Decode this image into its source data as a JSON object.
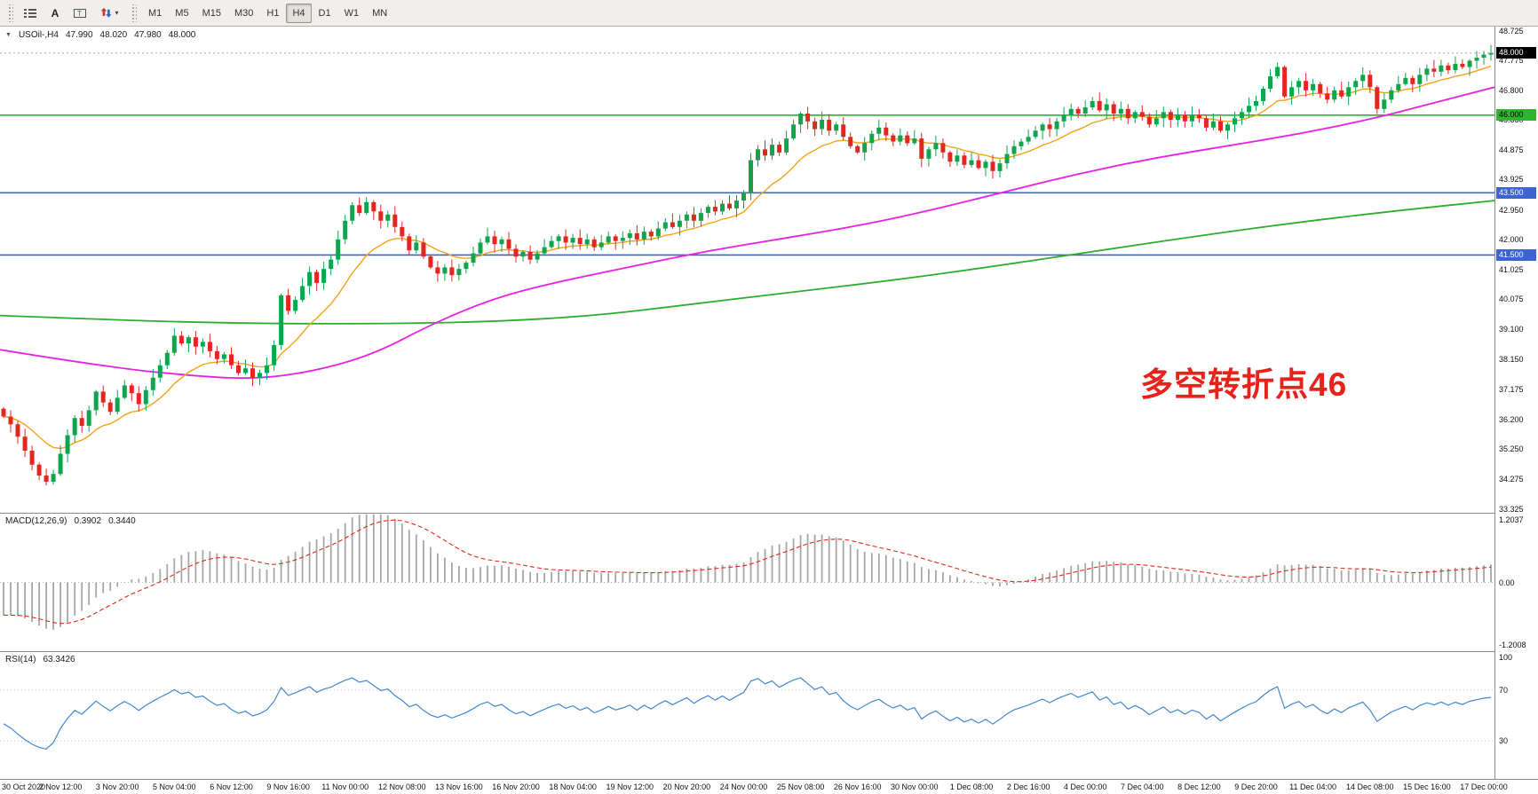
{
  "toolbar": {
    "tools": [
      {
        "name": "chart-list",
        "icon": "list-icon",
        "label": ""
      },
      {
        "name": "text",
        "icon": "text-tool-icon",
        "label": "A"
      },
      {
        "name": "text-label",
        "icon": "label-tool-icon",
        "label": "T"
      },
      {
        "name": "arrows",
        "icon": "arrows-tool-icon",
        "label": "",
        "has_dropdown": true
      }
    ],
    "timeframes": [
      "M1",
      "M5",
      "M15",
      "M30",
      "H1",
      "H4",
      "D1",
      "W1",
      "MN"
    ],
    "active_timeframe": "H4"
  },
  "chart": {
    "title": {
      "symbol_period": "USOil-,H4",
      "open": "47.990",
      "high": "48.020",
      "low": "47.980",
      "close": "48.000"
    },
    "annotation": {
      "text": "多空转折点46",
      "color": "#e8221a"
    }
  },
  "price_axis": {
    "labels": [
      "48.725",
      "47.775",
      "46.800",
      "45.850",
      "44.875",
      "43.925",
      "42.950",
      "42.000",
      "41.025",
      "40.075",
      "39.100",
      "38.150",
      "37.175",
      "36.200",
      "35.250",
      "34.275",
      "33.325"
    ],
    "current": {
      "label": "48.000",
      "price": 48.0,
      "bg": "#000000",
      "fg": "#ffffff"
    },
    "level_labels": [
      {
        "label": "46.000",
        "price": 46.0,
        "bg": "#2eb52e",
        "fg": "#000000"
      },
      {
        "label": "43.500",
        "price": 43.5,
        "bg": "#3c64d0",
        "fg": "#ffffff"
      },
      {
        "label": "41.500",
        "price": 41.5,
        "bg": "#3c64d0",
        "fg": "#ffffff"
      }
    ]
  },
  "macd_panel": {
    "label": "MACD(12,26,9)",
    "value_main": "0.3902",
    "value_signal": "0.3440",
    "axis_labels": [
      "1.2037",
      "0.00",
      "-1.2008"
    ]
  },
  "rsi_panel": {
    "label": "RSI(14)",
    "value": "63.3426",
    "axis_labels": [
      "100",
      "70",
      "30"
    ]
  },
  "chart_data": {
    "type": "candlestick",
    "symbol": "USOil-",
    "timeframe": "H4",
    "title": "USOil-,H4",
    "ohlc_display": {
      "open": 47.99,
      "high": 48.02,
      "low": 47.98,
      "close": 48.0
    },
    "price_range": [
      33.2,
      48.85
    ],
    "current_price": 48.0,
    "first_open": 36.55,
    "closes": [
      36.3,
      36.05,
      35.65,
      35.2,
      34.75,
      34.4,
      34.2,
      34.45,
      35.1,
      35.7,
      36.25,
      36.0,
      36.5,
      37.1,
      36.75,
      36.45,
      36.9,
      37.3,
      37.05,
      36.7,
      37.15,
      37.55,
      37.95,
      38.35,
      38.9,
      38.65,
      38.85,
      38.55,
      38.7,
      38.4,
      38.15,
      38.3,
      37.95,
      37.7,
      37.85,
      37.55,
      37.7,
      37.95,
      38.6,
      40.2,
      39.7,
      40.05,
      40.5,
      40.95,
      40.6,
      41.05,
      41.35,
      42.0,
      42.6,
      43.1,
      42.85,
      43.2,
      42.9,
      42.6,
      42.8,
      42.4,
      42.1,
      41.65,
      41.9,
      41.45,
      41.1,
      40.9,
      41.1,
      40.85,
      41.05,
      41.25,
      41.55,
      41.9,
      42.1,
      41.85,
      42.0,
      41.7,
      41.45,
      41.6,
      41.35,
      41.55,
      41.75,
      41.95,
      42.1,
      41.9,
      42.05,
      41.85,
      42.0,
      41.75,
      41.9,
      42.1,
      41.95,
      42.05,
      42.2,
      42.0,
      42.25,
      42.1,
      42.35,
      42.55,
      42.4,
      42.6,
      42.8,
      42.6,
      42.85,
      43.05,
      42.9,
      43.15,
      43.0,
      43.25,
      43.5,
      44.55,
      44.9,
      44.7,
      45.05,
      44.8,
      45.25,
      45.7,
      46.05,
      45.8,
      45.55,
      45.85,
      45.5,
      45.7,
      45.3,
      45.0,
      44.8,
      45.1,
      45.4,
      45.6,
      45.35,
      45.15,
      45.35,
      45.1,
      45.25,
      44.6,
      44.9,
      45.1,
      44.8,
      44.5,
      44.7,
      44.4,
      44.55,
      44.3,
      44.5,
      44.2,
      44.45,
      44.75,
      45.0,
      45.15,
      45.3,
      45.5,
      45.7,
      45.55,
      45.8,
      46.0,
      46.2,
      46.05,
      46.25,
      46.45,
      46.15,
      46.35,
      46.05,
      46.2,
      45.9,
      46.1,
      45.95,
      45.7,
      45.9,
      46.1,
      45.85,
      46.0,
      45.8,
      46.0,
      45.9,
      45.6,
      45.8,
      45.5,
      45.7,
      45.9,
      46.1,
      46.3,
      46.45,
      46.85,
      47.25,
      47.55,
      46.6,
      46.9,
      47.1,
      46.8,
      47.0,
      46.7,
      46.5,
      46.8,
      46.6,
      46.9,
      47.1,
      47.3,
      46.9,
      46.2,
      46.5,
      46.8,
      47.0,
      47.2,
      47.0,
      47.3,
      47.5,
      47.4,
      47.6,
      47.45,
      47.65,
      47.55,
      47.75,
      47.85,
      47.95,
      48.0
    ],
    "x_label_every": 8,
    "x_labels": [
      "30 Oct 2020",
      "2 Nov 12:00",
      "3 Nov 20:00",
      "5 Nov 04:00",
      "6 Nov 12:00",
      "9 Nov 16:00",
      "11 Nov 00:00",
      "12 Nov 08:00",
      "13 Nov 16:00",
      "16 Nov 20:00",
      "18 Nov 04:00",
      "19 Nov 12:00",
      "20 Nov 20:00",
      "24 Nov 00:00",
      "25 Nov 08:00",
      "26 Nov 16:00",
      "30 Nov 00:00",
      "1 Dec 08:00",
      "2 Dec 16:00",
      "4 Dec 00:00",
      "7 Dec 04:00",
      "8 Dec 12:00",
      "9 Dec 20:00",
      "11 Dec 04:00",
      "14 Dec 08:00",
      "15 Dec 16:00",
      "17 Dec 00:00"
    ],
    "horizontal_lines": [
      {
        "price": 46.0,
        "color": "#2eb52e"
      },
      {
        "price": 43.5,
        "color": "#3c64d0"
      },
      {
        "price": 41.5,
        "color": "#3c64d0"
      }
    ],
    "candle_colors": {
      "up": "#10a54d",
      "down": "#e3271e"
    },
    "moving_averages": [
      {
        "name": "fast",
        "color": "#f2a31b",
        "type": "ema",
        "period": 13
      },
      {
        "name": "mid",
        "color": "#e821e0",
        "anchors": [
          [
            0,
            38.45
          ],
          [
            0.07,
            37.9
          ],
          [
            0.13,
            37.6
          ],
          [
            0.17,
            37.5
          ],
          [
            0.21,
            37.75
          ],
          [
            0.25,
            38.3
          ],
          [
            0.29,
            39.3
          ],
          [
            0.33,
            40.1
          ],
          [
            0.37,
            40.6
          ],
          [
            0.42,
            41.1
          ],
          [
            0.47,
            41.6
          ],
          [
            0.52,
            42.0
          ],
          [
            0.57,
            42.4
          ],
          [
            0.62,
            42.9
          ],
          [
            0.67,
            43.5
          ],
          [
            0.72,
            44.1
          ],
          [
            0.77,
            44.6
          ],
          [
            0.82,
            45.0
          ],
          [
            0.87,
            45.4
          ],
          [
            0.92,
            45.9
          ],
          [
            0.96,
            46.4
          ],
          [
            1,
            46.9
          ]
        ]
      },
      {
        "name": "slow",
        "color": "#2eae2e",
        "anchors": [
          [
            0,
            39.55
          ],
          [
            0.08,
            39.4
          ],
          [
            0.16,
            39.3
          ],
          [
            0.25,
            39.28
          ],
          [
            0.33,
            39.35
          ],
          [
            0.4,
            39.55
          ],
          [
            0.46,
            39.9
          ],
          [
            0.53,
            40.3
          ],
          [
            0.6,
            40.7
          ],
          [
            0.66,
            41.1
          ],
          [
            0.73,
            41.6
          ],
          [
            0.8,
            42.1
          ],
          [
            0.86,
            42.5
          ],
          [
            0.93,
            42.9
          ],
          [
            1,
            43.25
          ]
        ]
      }
    ],
    "indicators": [
      {
        "name": "MACD",
        "params": [
          12,
          26,
          9
        ],
        "display_values": [
          0.3902,
          0.344
        ],
        "axis_range": [
          -1.2008,
          1.2037
        ],
        "histogram_color": "#a6a6a6",
        "signal_color": "#e02a1e"
      },
      {
        "name": "RSI",
        "params": [
          14
        ],
        "display_value": 63.3426,
        "levels": [
          70,
          30
        ],
        "line_color": "#4189cf",
        "axis_range": [
          0,
          100
        ]
      }
    ]
  }
}
